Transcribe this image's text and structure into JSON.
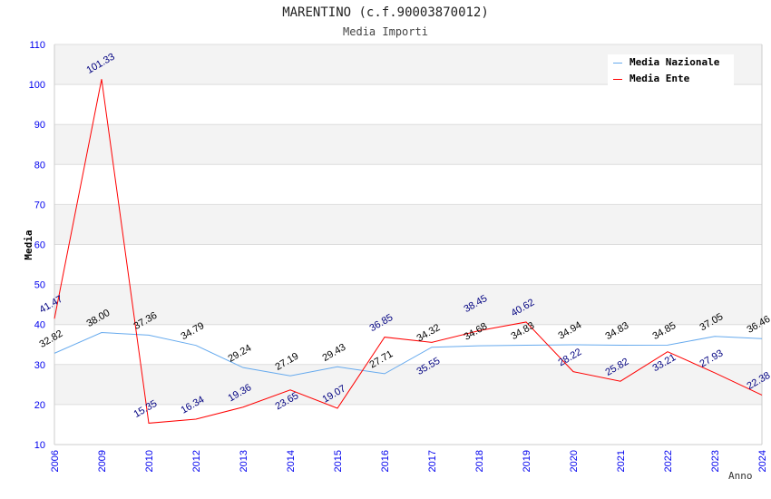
{
  "chart_data": {
    "type": "line",
    "title": "MARENTINO (c.f.90003870012)",
    "subtitle": "Media Importi",
    "xlabel": "Anno",
    "ylabel": "Media",
    "ylim": [
      10,
      110
    ],
    "yticks": [
      10,
      20,
      30,
      40,
      50,
      60,
      70,
      80,
      90,
      100,
      110
    ],
    "categories": [
      "2006",
      "2009",
      "2010",
      "2012",
      "2013",
      "2014",
      "2015",
      "2016",
      "2017",
      "2018",
      "2019",
      "2020",
      "2021",
      "2022",
      "2023",
      "2024"
    ],
    "grid": true,
    "legend_position": "top-right",
    "series": [
      {
        "name": "Media Nazionale",
        "color": "#66aaee",
        "label_color": "#000000",
        "values": [
          32.82,
          38.0,
          37.36,
          34.79,
          29.24,
          27.19,
          29.43,
          27.71,
          34.32,
          34.68,
          34.83,
          34.94,
          34.83,
          34.85,
          37.05,
          36.46
        ]
      },
      {
        "name": "Media Ente",
        "color": "#ff0000",
        "label_color": "#000080",
        "values": [
          41.47,
          101.33,
          15.35,
          16.34,
          19.36,
          23.65,
          19.07,
          36.85,
          35.55,
          38.45,
          40.62,
          28.22,
          25.82,
          33.21,
          27.93,
          22.38
        ]
      }
    ]
  }
}
